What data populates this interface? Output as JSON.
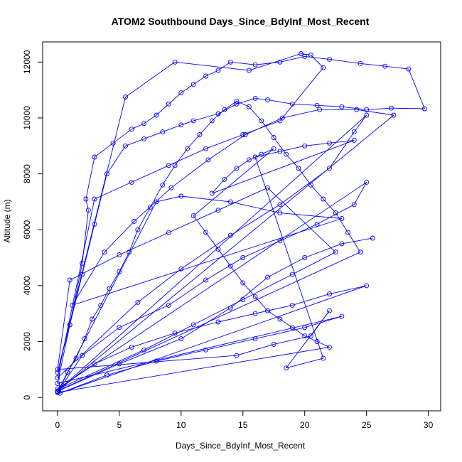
{
  "chart_data": {
    "type": "scatter",
    "title": "ATOM2 Southbound Days_Since_BdyInf_Most_Recent",
    "xlabel": "Days_Since_BdyInf_Most_Recent",
    "ylabel": "Altitude (m)",
    "xlim": [
      -1.2,
      31.0
    ],
    "ylim": [
      -480,
      12720
    ],
    "x_ticks": [
      0,
      5,
      10,
      15,
      20,
      25,
      30
    ],
    "y_ticks": [
      0,
      2000,
      4000,
      6000,
      8000,
      10000,
      12000
    ],
    "grid": false,
    "marker": "open-circle",
    "line_connected": true,
    "color": "#0000ff",
    "series": [
      {
        "points": [
          [
            0.0,
            200
          ],
          [
            0.3,
            450
          ],
          [
            0.8,
            900
          ],
          [
            1.5,
            1400
          ],
          [
            2.2,
            2100
          ],
          [
            2.8,
            2800
          ],
          [
            3.5,
            3300
          ],
          [
            4.2,
            3900
          ],
          [
            5.0,
            4500
          ],
          [
            5.8,
            5200
          ],
          [
            6.5,
            6000
          ],
          [
            7.5,
            6800
          ],
          [
            8.5,
            7600
          ],
          [
            9.5,
            8300
          ],
          [
            10.5,
            8900
          ],
          [
            11.5,
            9400
          ],
          [
            12.5,
            9900
          ],
          [
            13.5,
            10300
          ],
          [
            14.5,
            10600
          ],
          [
            15.5,
            10400
          ],
          [
            16.5,
            9900
          ],
          [
            17.5,
            9300
          ],
          [
            18.5,
            8700
          ],
          [
            19.5,
            8200
          ],
          [
            20.5,
            7600
          ],
          [
            21.5,
            7100
          ],
          [
            22.5,
            6600
          ],
          [
            23.5,
            5900
          ],
          [
            24.5,
            5200
          ],
          [
            0.1,
            250
          ],
          [
            2.0,
            1500
          ],
          [
            5.0,
            2500
          ],
          [
            9.0,
            3300
          ],
          [
            12.0,
            4200
          ],
          [
            15.0,
            5000
          ],
          [
            18.0,
            5600
          ],
          [
            21.0,
            6200
          ],
          [
            24.0,
            6900
          ],
          [
            25.0,
            7700
          ],
          [
            0.0,
            300
          ],
          [
            3.0,
            1200
          ],
          [
            6.0,
            1800
          ],
          [
            9.5,
            2300
          ],
          [
            13.0,
            2700
          ],
          [
            16.0,
            3000
          ],
          [
            19.0,
            3300
          ],
          [
            22.0,
            3700
          ],
          [
            25.0,
            4000
          ],
          [
            0.2,
            150
          ],
          [
            4.0,
            800
          ],
          [
            8.0,
            1300
          ],
          [
            12.0,
            1700
          ],
          [
            16.0,
            2100
          ],
          [
            20.0,
            2500
          ],
          [
            23.0,
            2900
          ],
          [
            0.0,
            500
          ],
          [
            1.0,
            2600
          ],
          [
            2.0,
            4800
          ],
          [
            2.5,
            6700
          ],
          [
            2.3,
            7100
          ],
          [
            3.0,
            8600
          ],
          [
            4.5,
            9100
          ],
          [
            6.0,
            9600
          ],
          [
            7.0,
            9800
          ],
          [
            8.0,
            10100
          ],
          [
            9.0,
            10500
          ],
          [
            10.0,
            10900
          ],
          [
            11.0,
            11200
          ],
          [
            12.0,
            11500
          ],
          [
            13.0,
            11700
          ],
          [
            14.0,
            12000
          ],
          [
            16.0,
            11900
          ],
          [
            18.0,
            12000
          ],
          [
            20.0,
            12200
          ],
          [
            22.0,
            12100
          ],
          [
            24.5,
            11950
          ],
          [
            26.5,
            11850
          ],
          [
            28.4,
            11750
          ],
          [
            29.7,
            10330
          ],
          [
            27.0,
            10350
          ],
          [
            25.0,
            10300
          ],
          [
            23.0,
            10400
          ],
          [
            21.0,
            10450
          ],
          [
            19.0,
            10500
          ],
          [
            17.0,
            10650
          ],
          [
            16.0,
            10700
          ],
          [
            14.5,
            10500
          ],
          [
            13.0,
            10150
          ],
          [
            11.0,
            9900
          ],
          [
            10.0,
            9750
          ],
          [
            8.5,
            9500
          ],
          [
            7.0,
            9250
          ],
          [
            5.5,
            9000
          ],
          [
            4.0,
            8000
          ],
          [
            3.0,
            6200
          ],
          [
            2.0,
            4400
          ],
          [
            1.0,
            2600
          ],
          [
            0.0,
            900
          ],
          [
            5.5,
            10750
          ],
          [
            9.5,
            12000
          ],
          [
            15.5,
            11700
          ],
          [
            19.7,
            12300
          ],
          [
            20.5,
            12250
          ],
          [
            21.5,
            11800
          ],
          [
            18.0,
            9900
          ],
          [
            15.0,
            9400
          ],
          [
            12.0,
            8900
          ],
          [
            9.0,
            8300
          ],
          [
            6.0,
            7700
          ],
          [
            3.0,
            7100
          ],
          [
            0.0,
            700
          ],
          [
            6.5,
            3400
          ],
          [
            10.0,
            4600
          ],
          [
            14.0,
            5800
          ],
          [
            18.0,
            6900
          ],
          [
            22.0,
            8200
          ],
          [
            24.0,
            9500
          ],
          [
            25.0,
            10100
          ],
          [
            0.3,
            350
          ],
          [
            7.0,
            1700
          ],
          [
            11.0,
            2600
          ],
          [
            15.0,
            3500
          ],
          [
            19.0,
            4400
          ],
          [
            22.5,
            5200
          ],
          [
            17.0,
            7500
          ],
          [
            13.0,
            6700
          ],
          [
            9.0,
            5900
          ],
          [
            5.0,
            5100
          ],
          [
            1.0,
            4200
          ],
          [
            0.0,
            1000
          ],
          [
            14.5,
            1500
          ],
          [
            17.5,
            1900
          ],
          [
            20.5,
            2200
          ],
          [
            22.0,
            3100
          ],
          [
            18.5,
            1050
          ],
          [
            21.5,
            1400
          ],
          [
            16.0,
            8600
          ],
          [
            18.0,
            8800
          ],
          [
            20.0,
            9000
          ],
          [
            22.0,
            9100
          ],
          [
            24.0,
            9200
          ],
          [
            12.5,
            7300
          ],
          [
            13.5,
            7800
          ],
          [
            14.5,
            8200
          ],
          [
            15.5,
            8500
          ],
          [
            16.5,
            8700
          ],
          [
            17.5,
            8900
          ],
          [
            11.0,
            6500
          ],
          [
            12.0,
            5900
          ],
          [
            13.0,
            5300
          ],
          [
            14.0,
            4700
          ],
          [
            15.0,
            4100
          ],
          [
            16.0,
            3600
          ],
          [
            17.0,
            3100
          ],
          [
            18.0,
            2800
          ],
          [
            19.0,
            2500
          ],
          [
            20.0,
            2200
          ],
          [
            21.0,
            2000
          ],
          [
            22.0,
            1800
          ],
          [
            0.0,
            180
          ],
          [
            8.0,
            7000
          ],
          [
            10.0,
            7200
          ],
          [
            14.0,
            7000
          ],
          [
            18.0,
            6600
          ],
          [
            23.0,
            6400
          ],
          [
            1.2,
            3300
          ],
          [
            3.8,
            5200
          ],
          [
            6.2,
            6300
          ],
          [
            9.2,
            7500
          ],
          [
            12.2,
            8500
          ],
          [
            15.2,
            9400
          ],
          [
            18.2,
            10000
          ],
          [
            21.2,
            10300
          ],
          [
            24.2,
            10300
          ],
          [
            27.2,
            10100
          ],
          [
            0.0,
            220
          ],
          [
            5.0,
            1200
          ],
          [
            10.0,
            2100
          ],
          [
            14.0,
            3200
          ],
          [
            17.0,
            4300
          ],
          [
            20.0,
            5000
          ],
          [
            23.0,
            5500
          ],
          [
            25.5,
            5700
          ]
        ]
      }
    ]
  }
}
